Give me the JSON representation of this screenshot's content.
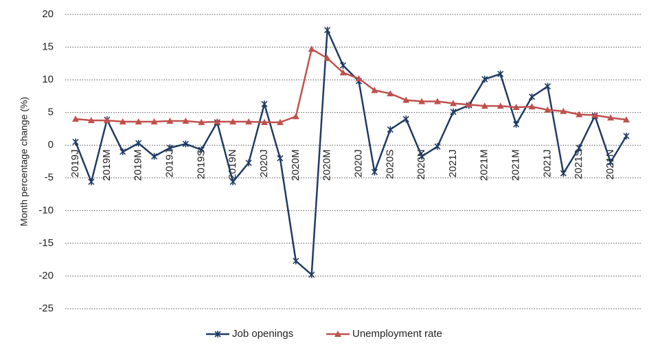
{
  "chart_data": {
    "type": "line",
    "y_label": "Month percentage change (%)",
    "categories": [
      "2019J",
      null,
      "2019M",
      null,
      "2019M",
      null,
      "2019J",
      null,
      "2019S",
      null,
      "2019N",
      null,
      "2020J",
      null,
      "2020M",
      null,
      "2020M",
      null,
      "2020J",
      null,
      "2020S",
      null,
      "2020N",
      null,
      "2021J",
      null,
      "2021M",
      null,
      "2021M",
      null,
      "2021J",
      null,
      "2021S",
      null,
      "2021N",
      null
    ],
    "series": [
      {
        "name": "Job openings",
        "color": "#1f3b63",
        "marker": "star",
        "values": [
          0.5,
          -5.6,
          3.9,
          -1.0,
          0.3,
          -1.7,
          -0.4,
          0.2,
          -0.7,
          3.5,
          -5.6,
          -2.7,
          6.3,
          -2.0,
          -17.7,
          -19.8,
          17.6,
          12.2,
          9.8,
          -4.1,
          2.4,
          4.0,
          -1.7,
          -0.2,
          5.1,
          6.1,
          10.1,
          10.9,
          3.2,
          7.4,
          9.0,
          -4.3,
          -0.4,
          4.5,
          -2.6,
          1.4
        ]
      },
      {
        "name": "Unemployment rate",
        "color": "#c0504d",
        "marker": "triangle",
        "values": [
          4.0,
          3.8,
          3.8,
          3.6,
          3.6,
          3.6,
          3.7,
          3.7,
          3.5,
          3.6,
          3.6,
          3.6,
          3.5,
          3.5,
          4.4,
          14.7,
          13.3,
          11.1,
          10.2,
          8.4,
          7.9,
          6.9,
          6.7,
          6.7,
          6.4,
          6.2,
          6.0,
          6.0,
          5.8,
          5.9,
          5.4,
          5.2,
          4.7,
          4.6,
          4.2,
          3.9
        ]
      }
    ],
    "ylim": [
      -25,
      20
    ],
    "yticks": [
      -25,
      -20,
      -15,
      -10,
      -5,
      0,
      5,
      10,
      15,
      20
    ],
    "grid": true,
    "legend": "bottom"
  }
}
